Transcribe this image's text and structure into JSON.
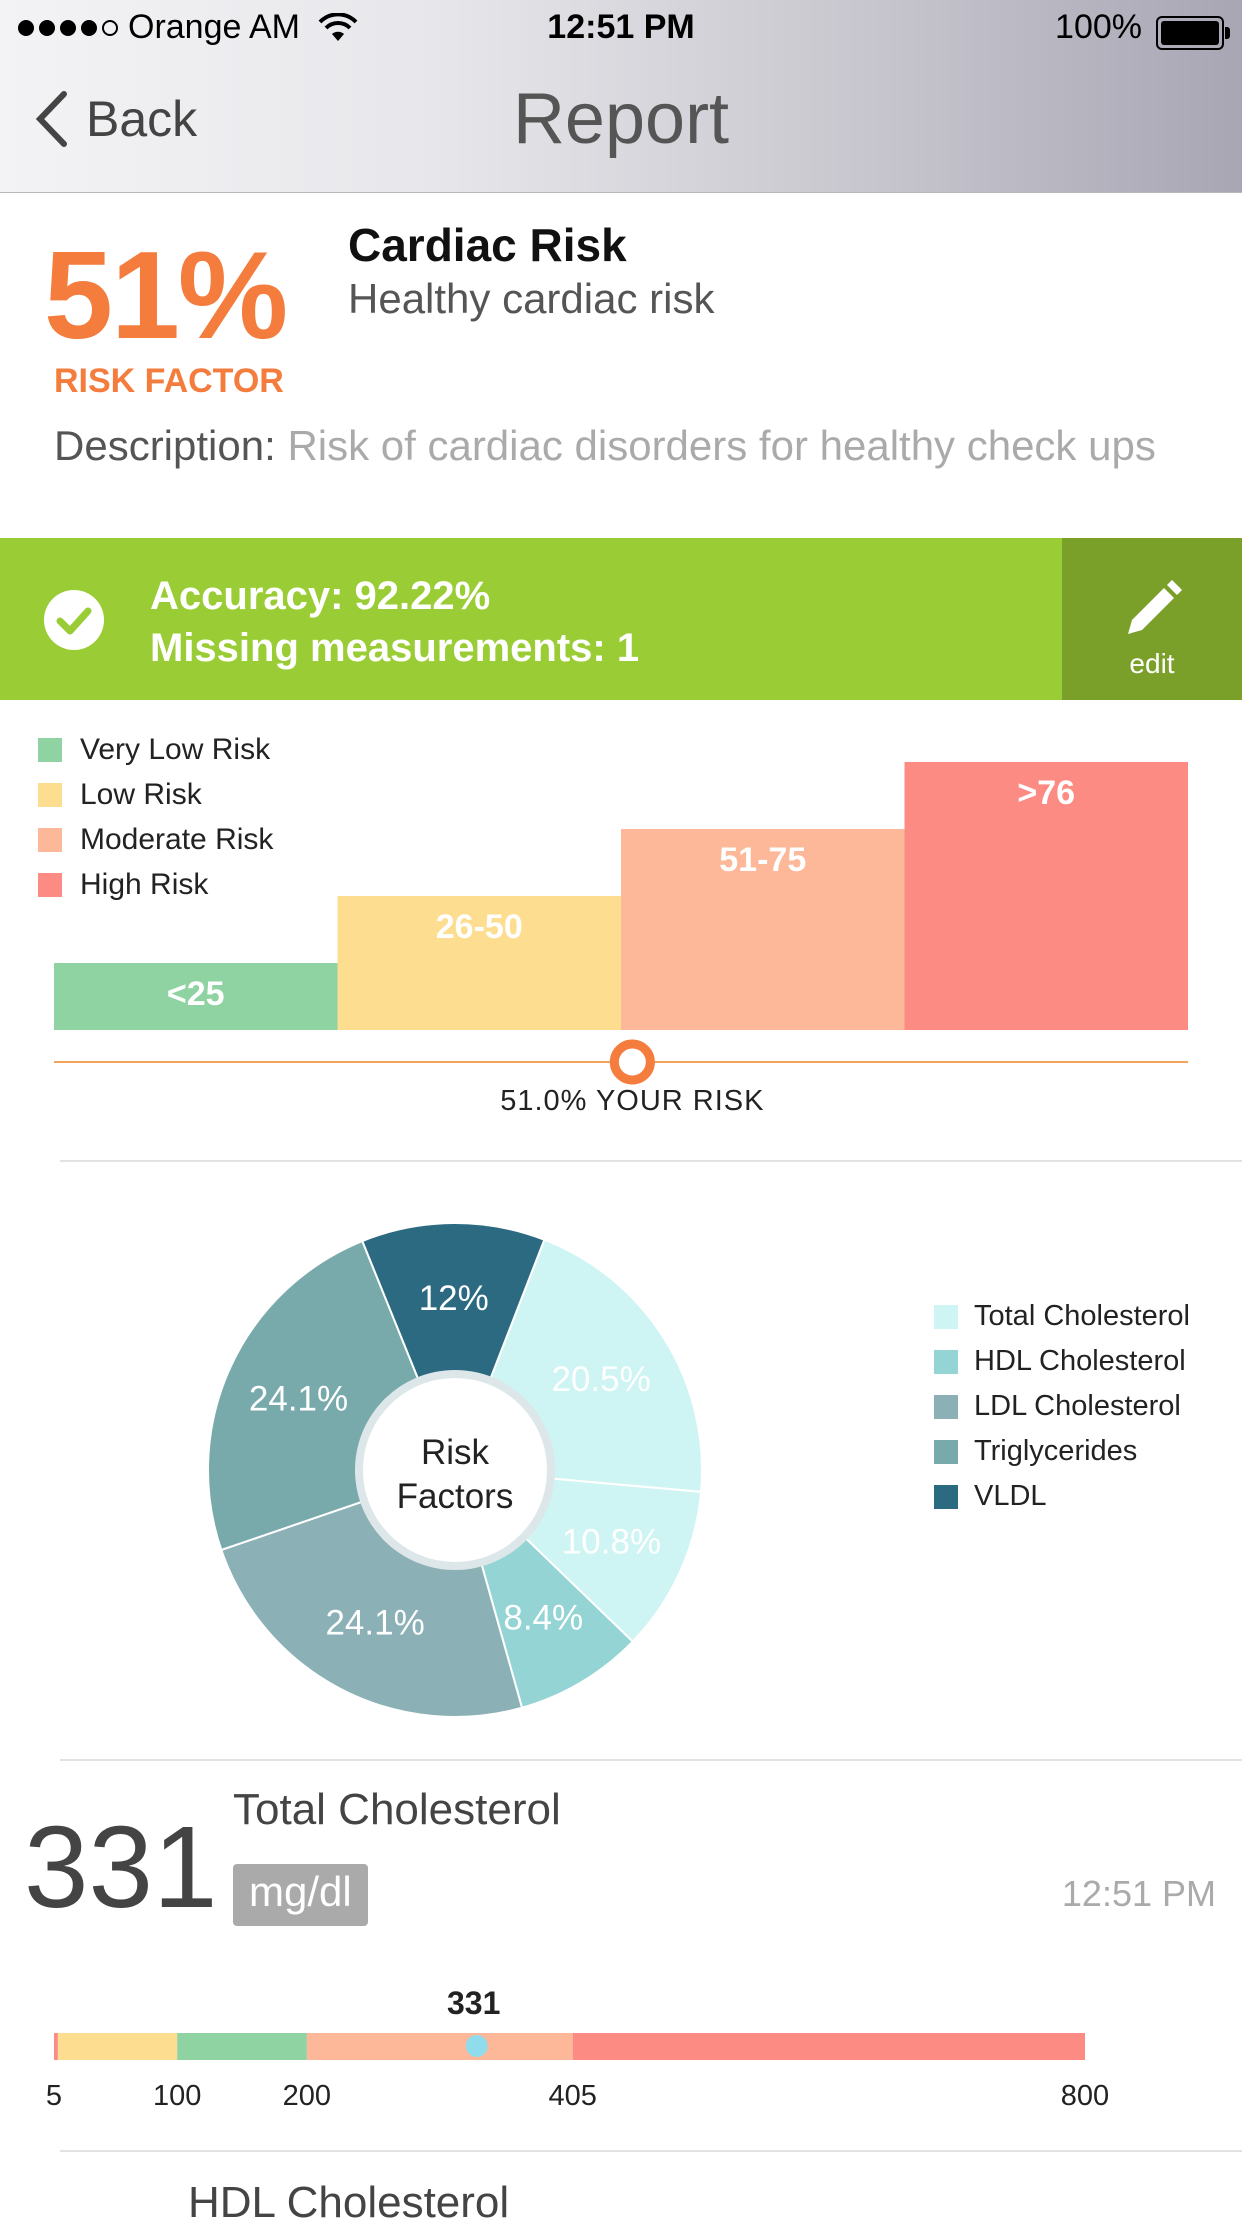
{
  "status_bar": {
    "carrier": "Orange AM",
    "time": "12:51 PM",
    "battery": "100%"
  },
  "nav": {
    "back_label": "Back",
    "title": "Report"
  },
  "summary": {
    "percent": "51%",
    "risk_factor_label": "RISK FACTOR",
    "title": "Cardiac Risk",
    "subtitle": "Healthy cardiac risk",
    "description_label": "Description:",
    "description": "Risk of cardiac disorders for healthy check ups"
  },
  "accuracy_banner": {
    "accuracy": "Accuracy: 92.22%",
    "missing": "Missing measurements: 1",
    "edit_label": "edit"
  },
  "colors": {
    "accent": "#f47c3c",
    "green": "#9acd35",
    "green_dark": "#7aa02a"
  },
  "chart_data": [
    {
      "type": "bar",
      "categories": [
        "<25",
        "26-50",
        "51-75",
        ">76"
      ],
      "values": [
        1,
        2,
        3,
        4
      ],
      "series": [
        {
          "name": "Very Low Risk",
          "color": "#8ed3a1"
        },
        {
          "name": "Low Risk",
          "color": "#fddd90"
        },
        {
          "name": "Moderate Risk",
          "color": "#fdb89a"
        },
        {
          "name": "High Risk",
          "color": "#fb8b83"
        }
      ],
      "your_risk": 51.0,
      "your_risk_label": "51.0% YOUR RISK",
      "risk_range": [
        0,
        100
      ],
      "legend": "top-left"
    },
    {
      "type": "pie",
      "center_label": [
        "Risk",
        "Factors"
      ],
      "legend": "right",
      "slices": [
        {
          "label": "20.5%",
          "value": 20.5,
          "color": "#cef5f3"
        },
        {
          "label": "10.8%",
          "value": 10.8,
          "color": "#cef5f3"
        },
        {
          "label": "8.4%",
          "value": 8.4,
          "color": "#94d4d4"
        },
        {
          "label": "24.1%",
          "value": 24.1,
          "color": "#8bb0b6"
        },
        {
          "label": "24.1%",
          "value": 24.1,
          "color": "#79aaab"
        },
        {
          "label": "12%",
          "value": 12.0,
          "color": "#2b6a80"
        }
      ],
      "legend_entries": [
        {
          "name": "Total Cholesterol",
          "color": "#cef5f3"
        },
        {
          "name": "HDL Cholesterol",
          "color": "#94d4d4"
        },
        {
          "name": "LDL Cholesterol",
          "color": "#8bb0b6"
        },
        {
          "name": "Triglycerides",
          "color": "#79aaab"
        },
        {
          "name": "VLDL",
          "color": "#2b6a80"
        }
      ]
    }
  ],
  "metric": {
    "value": "331",
    "name": "Total Cholesterol",
    "unit": "mg/dl",
    "time": "12:51 PM",
    "range_bar": {
      "value": 331,
      "value_label": "331",
      "min": 5,
      "max": 800,
      "segments": [
        {
          "from": 5,
          "to": 8,
          "color": "#fb8b83"
        },
        {
          "from": 8,
          "to": 100,
          "color": "#fddd90"
        },
        {
          "from": 100,
          "to": 200,
          "color": "#8ed3a1"
        },
        {
          "from": 200,
          "to": 405,
          "color": "#fdb89a"
        },
        {
          "from": 405,
          "to": 800,
          "color": "#fb8b83"
        }
      ],
      "ticks": [
        "5",
        "100",
        "200",
        "405",
        "800"
      ]
    }
  },
  "next_metric": {
    "name": "HDL Cholesterol"
  }
}
